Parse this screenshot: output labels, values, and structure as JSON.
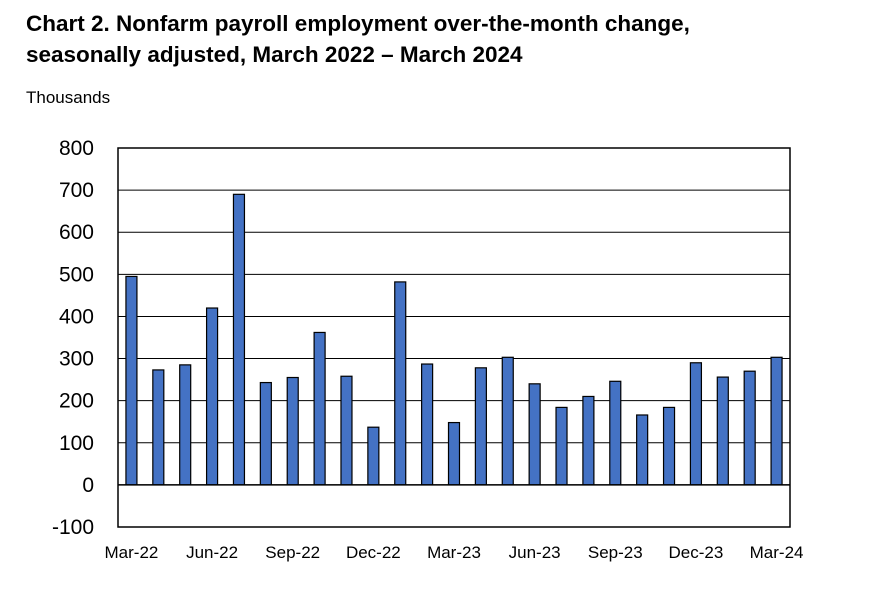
{
  "chart_data": {
    "type": "bar",
    "title_lines": [
      "Chart 2. Nonfarm payroll employment over-the-month change,",
      "seasonally adjusted, March 2022 – March 2024"
    ],
    "unit_label": "Thousands",
    "categories": [
      "Mar-22",
      "Apr-22",
      "May-22",
      "Jun-22",
      "Jul-22",
      "Aug-22",
      "Sep-22",
      "Oct-22",
      "Nov-22",
      "Dec-22",
      "Jan-23",
      "Feb-23",
      "Mar-23",
      "Apr-23",
      "May-23",
      "Jun-23",
      "Jul-23",
      "Aug-23",
      "Sep-23",
      "Oct-23",
      "Nov-23",
      "Dec-23",
      "Jan-24",
      "Feb-24",
      "Mar-24"
    ],
    "x_tick_labels": [
      "Mar-22",
      "Jun-22",
      "Sep-22",
      "Dec-22",
      "Mar-23",
      "Jun-23",
      "Sep-23",
      "Dec-23",
      "Mar-24"
    ],
    "values": [
      495,
      273,
      285,
      420,
      690,
      243,
      255,
      362,
      258,
      137,
      482,
      287,
      148,
      278,
      303,
      240,
      184,
      210,
      246,
      166,
      184,
      290,
      256,
      270,
      303
    ],
    "ylim": [
      -100,
      800
    ],
    "yticks": [
      -100,
      0,
      100,
      200,
      300,
      400,
      500,
      600,
      700,
      800
    ],
    "grid": true,
    "legend": "none",
    "bar_color": "#4472c4",
    "bar_edge_color": "#000000"
  }
}
